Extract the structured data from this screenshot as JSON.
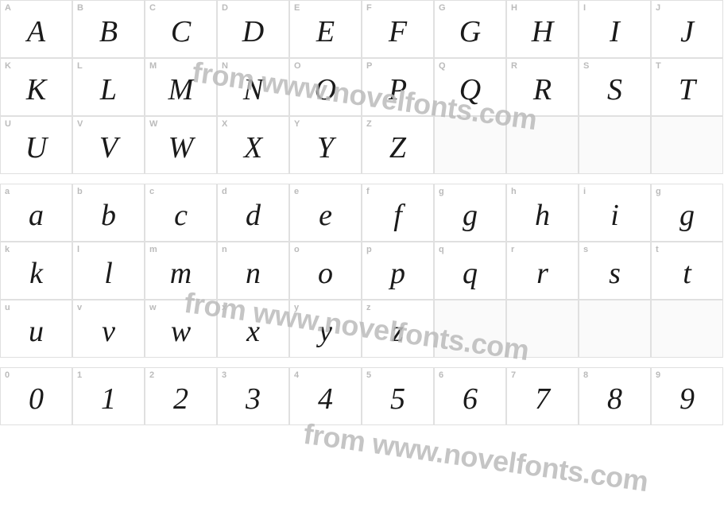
{
  "watermark_text": "from www.novelfonts.com",
  "watermark_color": "#bbbbbb",
  "label_color": "#bbbbbb",
  "glyph_color": "#1a1a1a",
  "border_color": "#e0e0e0",
  "cell_bg": "#ffffff",
  "rows": [
    {
      "type": "glyph",
      "cells": [
        {
          "label": "A",
          "glyph": "A"
        },
        {
          "label": "B",
          "glyph": "B"
        },
        {
          "label": "C",
          "glyph": "C"
        },
        {
          "label": "D",
          "glyph": "D"
        },
        {
          "label": "E",
          "glyph": "E"
        },
        {
          "label": "F",
          "glyph": "F"
        },
        {
          "label": "G",
          "glyph": "G"
        },
        {
          "label": "H",
          "glyph": "H"
        },
        {
          "label": "I",
          "glyph": "I"
        },
        {
          "label": "J",
          "glyph": "J"
        }
      ]
    },
    {
      "type": "glyph",
      "cells": [
        {
          "label": "K",
          "glyph": "K"
        },
        {
          "label": "L",
          "glyph": "L"
        },
        {
          "label": "M",
          "glyph": "M"
        },
        {
          "label": "N",
          "glyph": "N"
        },
        {
          "label": "O",
          "glyph": "O"
        },
        {
          "label": "P",
          "glyph": "P"
        },
        {
          "label": "Q",
          "glyph": "Q"
        },
        {
          "label": "R",
          "glyph": "R"
        },
        {
          "label": "S",
          "glyph": "S"
        },
        {
          "label": "T",
          "glyph": "T"
        }
      ]
    },
    {
      "type": "glyph",
      "cells": [
        {
          "label": "U",
          "glyph": "U"
        },
        {
          "label": "V",
          "glyph": "V"
        },
        {
          "label": "W",
          "glyph": "W"
        },
        {
          "label": "X",
          "glyph": "X"
        },
        {
          "label": "Y",
          "glyph": "Y"
        },
        {
          "label": "Z",
          "glyph": "Z"
        },
        {
          "label": "",
          "glyph": "",
          "empty": true
        },
        {
          "label": "",
          "glyph": "",
          "empty": true
        },
        {
          "label": "",
          "glyph": "",
          "empty": true
        },
        {
          "label": "",
          "glyph": "",
          "empty": true
        }
      ]
    },
    {
      "type": "spacer",
      "cells": [
        {},
        {},
        {},
        {},
        {},
        {},
        {},
        {},
        {},
        {}
      ]
    },
    {
      "type": "glyph",
      "cells": [
        {
          "label": "a",
          "glyph": "a"
        },
        {
          "label": "b",
          "glyph": "b"
        },
        {
          "label": "c",
          "glyph": "c"
        },
        {
          "label": "d",
          "glyph": "d"
        },
        {
          "label": "e",
          "glyph": "e"
        },
        {
          "label": "f",
          "glyph": "f"
        },
        {
          "label": "g",
          "glyph": "g"
        },
        {
          "label": "h",
          "glyph": "h"
        },
        {
          "label": "i",
          "glyph": "i"
        },
        {
          "label": "g",
          "glyph": "g"
        }
      ]
    },
    {
      "type": "glyph",
      "cells": [
        {
          "label": "k",
          "glyph": "k"
        },
        {
          "label": "l",
          "glyph": "l"
        },
        {
          "label": "m",
          "glyph": "m"
        },
        {
          "label": "n",
          "glyph": "n"
        },
        {
          "label": "o",
          "glyph": "o"
        },
        {
          "label": "p",
          "glyph": "p"
        },
        {
          "label": "q",
          "glyph": "q"
        },
        {
          "label": "r",
          "glyph": "r"
        },
        {
          "label": "s",
          "glyph": "s"
        },
        {
          "label": "t",
          "glyph": "t"
        }
      ]
    },
    {
      "type": "glyph",
      "cells": [
        {
          "label": "u",
          "glyph": "u"
        },
        {
          "label": "v",
          "glyph": "v"
        },
        {
          "label": "w",
          "glyph": "w"
        },
        {
          "label": "x",
          "glyph": "x"
        },
        {
          "label": "y",
          "glyph": "y"
        },
        {
          "label": "z",
          "glyph": "z"
        },
        {
          "label": "",
          "glyph": "",
          "empty": true
        },
        {
          "label": "",
          "glyph": "",
          "empty": true
        },
        {
          "label": "",
          "glyph": "",
          "empty": true
        },
        {
          "label": "",
          "glyph": "",
          "empty": true
        }
      ]
    },
    {
      "type": "spacer",
      "cells": [
        {},
        {},
        {},
        {},
        {},
        {},
        {},
        {},
        {},
        {}
      ]
    },
    {
      "type": "glyph",
      "cells": [
        {
          "label": "0",
          "glyph": "0"
        },
        {
          "label": "1",
          "glyph": "1"
        },
        {
          "label": "2",
          "glyph": "2"
        },
        {
          "label": "3",
          "glyph": "3"
        },
        {
          "label": "4",
          "glyph": "4"
        },
        {
          "label": "5",
          "glyph": "5"
        },
        {
          "label": "6",
          "glyph": "6"
        },
        {
          "label": "7",
          "glyph": "7"
        },
        {
          "label": "8",
          "glyph": "8"
        },
        {
          "label": "9",
          "glyph": "9"
        }
      ]
    }
  ]
}
